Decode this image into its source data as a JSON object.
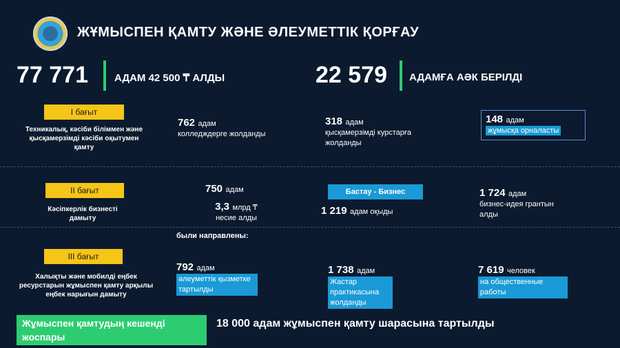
{
  "header": {
    "title": "ЖҰМЫСПЕН ҚАМТУ ЖӘНЕ ӘЛЕУМЕТТІК ҚОРҒАУ"
  },
  "stats": [
    {
      "value": "77 771",
      "text": "АДАМ 42 500 ₸ АЛДЫ"
    },
    {
      "value": "22 579",
      "text": "АДАМҒА АӘК БЕРІЛДІ"
    }
  ],
  "sections": {
    "s1": {
      "tag": "I бағыт",
      "desc": "Техникалық, кәсіби біліммен және қысқамерзімді кәсіби оқытумен қамту",
      "m1_num": "762",
      "m1_unit": "адам",
      "m1_text": "колледждерге жолданды",
      "m2_num": "318",
      "m2_unit": "адам",
      "m2_text": "қысқамерзімді курстарға  жолданды",
      "m3_num": "148",
      "m3_unit": "адам",
      "m3_text": "жұмысқа орналасты"
    },
    "s2": {
      "tag": "II бағыт",
      "desc": "Кәсіпкерлік бизнесті дамыту",
      "m1_num": "750",
      "m1_unit": "адам",
      "m2_num": "3,3",
      "m2_unit": "млрд ₸",
      "m2_text": "несие алды",
      "program": "Бастау - Бизнес",
      "m3_num": "1 219",
      "m3_unit": "адам оқыды",
      "m4_num": "1 724",
      "m4_unit": "адам",
      "m4_text": "бизнес-идея грантын алды",
      "note": "были направлены:"
    },
    "s3": {
      "tag": "III бағыт",
      "desc": "Халықты және мобилді еңбек ресурстарын жұмыспен қамту арқылы еңбек нарығын дамыту",
      "m1_num": "792",
      "m1_unit": "адам",
      "m1_text": "әлеуметтік қызметке тартылды",
      "m2_num": "1 738",
      "m2_unit": "адам",
      "m2_text": "Жастар практикасына жолданды",
      "m3_num": "7 619",
      "m3_unit": "человек",
      "m3_text": "на общественные работы"
    }
  },
  "footer": {
    "plan": "Жұмыспен қамтудың кешенді жоспары",
    "summary": "18 000 адам жұмыспен қамту шарасына тартылды"
  }
}
